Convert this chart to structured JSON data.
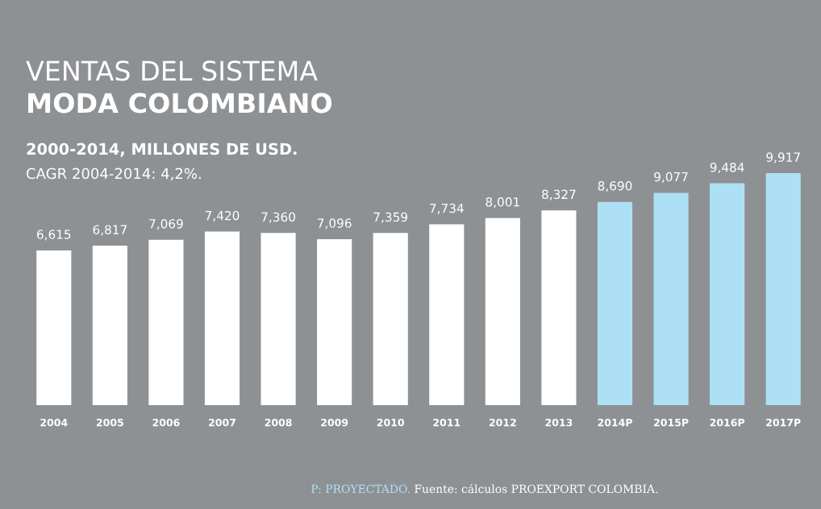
{
  "chart_data": {
    "type": "bar",
    "title": "VENTAS DEL SISTEMA\nMODA COLOMBIANO",
    "subtitle": "2000-2014, MILLONES DE USD.",
    "categories": [
      "2004",
      "2005",
      "2006",
      "2007",
      "2008",
      "2009",
      "2010",
      "2011",
      "2012",
      "2013",
      "2014P",
      "2015P",
      "2016P",
      "2017P"
    ],
    "values": [
      6615,
      6817,
      7069,
      7420,
      7360,
      7096,
      7359,
      7734,
      8001,
      8327,
      8690,
      9077,
      9484,
      9917
    ],
    "colors": [
      "#ffffff",
      "#ffffff",
      "#ffffff",
      "#ffffff",
      "#ffffff",
      "#ffffff",
      "#ffffff",
      "#ffffff",
      "#ffffff",
      "#ffffff",
      "#aee0f5",
      "#aee0f5",
      "#aee0f5",
      "#aee0f5"
    ],
    "value_labels": [
      "6,615",
      "6,817",
      "7,069",
      "7,420",
      "7,360",
      "7,096",
      "7,359",
      "7,734",
      "8,001",
      "8,327",
      "8,690",
      "9,077",
      "9,484",
      "9,917"
    ],
    "tick_labels": "x",
    "grid": false,
    "legend": false,
    "annotations": [
      "CAGR 2004-2014: 4,2%.",
      "P: PROYECTADO.",
      "Fuente: cálculos PROEXPORT COLOMBIA."
    ]
  }
}
